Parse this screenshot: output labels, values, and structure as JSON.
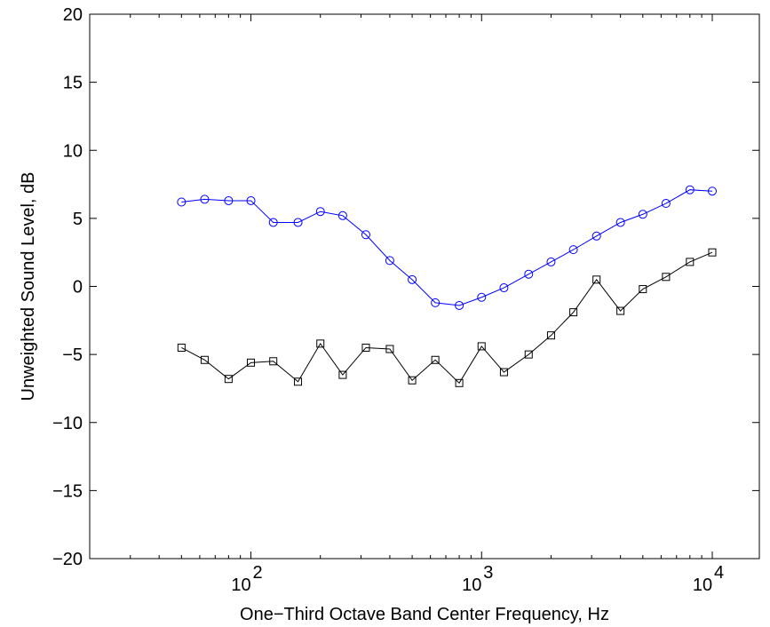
{
  "chart_data": {
    "type": "line",
    "x_scale": "log",
    "xlabel": "One−Third Octave Band Center Frequency, Hz",
    "ylabel": "Unweighted Sound Level, dB",
    "xlim": [
      20,
      16000
    ],
    "ylim": [
      -20,
      20
    ],
    "x_ticks": [
      {
        "value": 100,
        "base": "10",
        "exp": "2"
      },
      {
        "value": 1000,
        "base": "10",
        "exp": "3"
      },
      {
        "value": 10000,
        "base": "10",
        "exp": "4"
      }
    ],
    "y_ticks": [
      {
        "value": 20,
        "label": "20"
      },
      {
        "value": 15,
        "label": "15"
      },
      {
        "value": 10,
        "label": "10"
      },
      {
        "value": 5,
        "label": "5"
      },
      {
        "value": 0,
        "label": "0"
      },
      {
        "value": -5,
        "label": "−5"
      },
      {
        "value": -10,
        "label": "−10"
      },
      {
        "value": -15,
        "label": "−15"
      },
      {
        "value": -20,
        "label": "−20"
      }
    ],
    "grid": false,
    "x": [
      50,
      63,
      80,
      100,
      125,
      160,
      200,
      250,
      315,
      400,
      500,
      630,
      800,
      1000,
      1250,
      1600,
      2000,
      2500,
      3150,
      4000,
      5000,
      6300,
      8000,
      10000
    ],
    "series": [
      {
        "marker": "circle",
        "color": "#0000ff",
        "values": [
          6.2,
          6.4,
          6.3,
          6.3,
          4.7,
          4.7,
          5.5,
          5.2,
          3.8,
          1.9,
          0.5,
          -1.2,
          -1.4,
          -0.8,
          -0.1,
          0.9,
          1.8,
          2.7,
          3.7,
          4.7,
          5.3,
          6.1,
          7.1,
          7.0
        ]
      },
      {
        "marker": "square",
        "color": "#000000",
        "values": [
          -4.5,
          -5.4,
          -6.8,
          -5.6,
          -5.5,
          -7.0,
          -4.2,
          -6.5,
          -4.5,
          -4.6,
          -6.9,
          -5.4,
          -7.1,
          -4.4,
          -6.3,
          -5.0,
          -3.6,
          -1.9,
          0.5,
          -1.8,
          -0.2,
          0.7,
          1.8,
          2.5
        ]
      }
    ]
  }
}
